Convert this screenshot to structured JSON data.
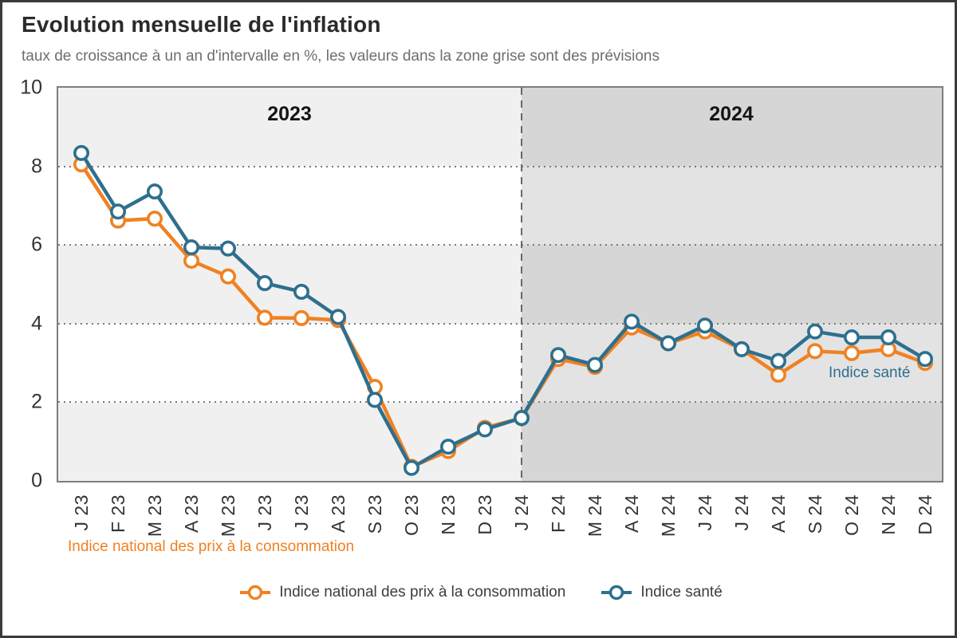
{
  "title": "Evolution mensuelle de l'inflation",
  "subtitle": "taux de croissance à un an d'intervalle en %, les valeurs dans la zone grise sont des prévisions",
  "annotations": {
    "year_left": "2023",
    "year_right": "2024",
    "series1_inline_label": "Indice national des prix à la consommation",
    "series2_inline_label": "Indice santé"
  },
  "legend": {
    "items": [
      {
        "label": "Indice national des prix à la consommation",
        "color": "#F08122"
      },
      {
        "label": "Indice santé",
        "color": "#2E6F8E"
      }
    ]
  },
  "chart_data": {
    "type": "line",
    "title": "Evolution mensuelle de l'inflation",
    "subtitle_note": "les valeurs dans la zone grise sont des prévisions",
    "unit": "taux de croissance à un an d'intervalle en %",
    "x_labels": [
      "J 23",
      "F 23",
      "M 23",
      "A 23",
      "M 23",
      "J 23",
      "J 23",
      "A 23",
      "S 23",
      "O 23",
      "N 23",
      "D 23",
      "J 24",
      "F 24",
      "M 24",
      "A 24",
      "M 24",
      "J 24",
      "J 24",
      "A 24",
      "S 24",
      "O 24",
      "N 24",
      "D 24"
    ],
    "series": [
      {
        "name": "Indice national des prix à la consommation",
        "color": "#F08122",
        "values": [
          8.05,
          6.62,
          6.67,
          5.6,
          5.2,
          4.15,
          4.14,
          4.09,
          2.39,
          0.36,
          0.76,
          1.35,
          1.6,
          3.1,
          2.9,
          3.9,
          3.5,
          3.8,
          3.35,
          2.7,
          3.3,
          3.25,
          3.35,
          3.0
        ]
      },
      {
        "name": "Indice santé",
        "color": "#2E6F8E",
        "values": [
          8.34,
          6.85,
          7.36,
          5.94,
          5.91,
          5.03,
          4.81,
          4.17,
          2.06,
          0.33,
          0.87,
          1.31,
          1.6,
          3.2,
          2.95,
          4.05,
          3.5,
          3.95,
          3.35,
          3.05,
          3.8,
          3.65,
          3.65,
          3.1
        ]
      }
    ],
    "ylim": [
      0,
      10
    ],
    "yticks": [
      0,
      2,
      4,
      6,
      8,
      10
    ],
    "grid": "horizontal dotted lines at 2, 4, 6, 8",
    "forecast_start_index": 12,
    "history_zone_label": "2023",
    "forecast_zone_label": "2024",
    "legend_position": "bottom"
  }
}
